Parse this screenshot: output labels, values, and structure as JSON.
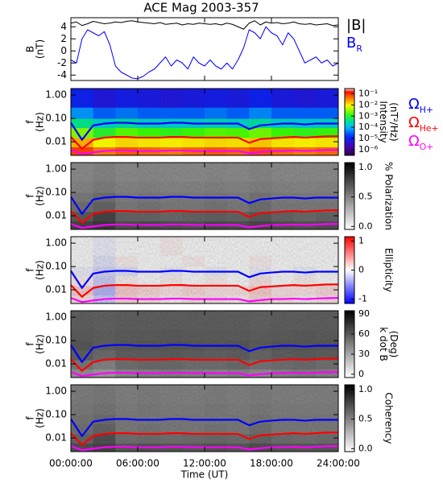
{
  "chart_data": [
    {
      "type": "line",
      "title": "ACE Mag 2003-357",
      "ylabel": [
        "B",
        "(nT)"
      ],
      "xlim": [
        0,
        24
      ],
      "ylim": [
        -4.9,
        5.5
      ],
      "yticks": [
        4,
        2,
        0,
        -2,
        -4
      ],
      "x": [
        0,
        0.5,
        1,
        1.5,
        2,
        2.5,
        3,
        3.5,
        4,
        4.5,
        5,
        5.5,
        6,
        6.5,
        7,
        7.5,
        8,
        8.5,
        9,
        9.5,
        10,
        10.5,
        11,
        11.5,
        12,
        12.5,
        13,
        13.5,
        14,
        14.5,
        15,
        15.5,
        16,
        16.5,
        17,
        17.5,
        18,
        18.5,
        19,
        19.5,
        20,
        20.5,
        21,
        21.5,
        22,
        22.5,
        23,
        23.5,
        24
      ],
      "series": [
        {
          "name": "|B|",
          "color": "#000000",
          "values": [
            4.6,
            4.8,
            4.2,
            4.5,
            4.9,
            4.7,
            4.5,
            4.6,
            4.8,
            4.7,
            4.9,
            5.0,
            4.8,
            4.7,
            4.6,
            4.5,
            4.7,
            4.4,
            4.5,
            4.6,
            4.3,
            4.5,
            4.4,
            4.6,
            4.5,
            4.4,
            4.5,
            4.3,
            4.6,
            4.4,
            4.0,
            3.6,
            4.6,
            5.0,
            4.3,
            4.8,
            4.6,
            4.7,
            4.5,
            4.6,
            4.8,
            4.5,
            4.4,
            4.5,
            4.3,
            4.4,
            4.5,
            4.2,
            4.3
          ]
        },
        {
          "name": "BR",
          "color": "#0000ff",
          "values": [
            -1.5,
            -2,
            2,
            3.5,
            3,
            2.5,
            3.2,
            1,
            -2.5,
            -3.5,
            -4,
            -4.5,
            -4.6,
            -4.2,
            -3.5,
            -3,
            -2,
            -1,
            -2.5,
            -1.5,
            -2,
            -3,
            -1,
            -2,
            -2.5,
            -1.5,
            -2.5,
            -3,
            -2,
            -3,
            -1.5,
            0.5,
            3.5,
            3,
            2,
            4,
            3,
            2.5,
            1,
            3,
            2,
            0,
            -2,
            -1.5,
            -1,
            -2,
            -1.5,
            -2.5,
            -2
          ]
        }
      ]
    },
    {
      "type": "heatmap",
      "ylabel": [
        "f",
        "(Hz)"
      ],
      "ylog": true,
      "xlim": [
        0,
        24
      ],
      "ylim": [
        0.0026,
        1.9
      ],
      "yticks": [
        {
          "value": 1,
          "label": "1.00"
        },
        {
          "value": 0.1,
          "label": "0.10"
        },
        {
          "value": 0.01,
          "label": "0.01"
        }
      ],
      "colormap": "rainbow",
      "zlog": true,
      "zlim": [
        3e-07,
        0.3
      ],
      "zlabel": [
        "Intensity",
        "(nT²/Hz)"
      ],
      "zticks": [
        {
          "value": 0.1,
          "label": "10⁻¹"
        },
        {
          "value": 0.01,
          "label": "10⁻²"
        },
        {
          "value": 0.001,
          "label": "10⁻³"
        },
        {
          "value": 0.0001,
          "label": "10⁻⁴"
        },
        {
          "value": 1e-05,
          "label": "10⁻⁵"
        },
        {
          "value": 1e-06,
          "label": "10⁻⁶"
        }
      ],
      "x_bins": [
        0,
        2,
        4,
        6,
        8,
        10,
        12,
        14,
        16,
        18,
        20,
        22,
        24
      ],
      "y_bins": [
        0.0026,
        0.006,
        0.015,
        0.04,
        0.1,
        0.3,
        1.9
      ],
      "z": [
        [
          0.08,
          0.04,
          0.06,
          0.05,
          0.04,
          0.05,
          0.06,
          0.05,
          0.07,
          0.05,
          0.04,
          0.05
        ],
        [
          0.02,
          0.008,
          0.012,
          0.01,
          0.009,
          0.01,
          0.012,
          0.011,
          0.015,
          0.01,
          0.009,
          0.01
        ],
        [
          0.003,
          0.001,
          0.002,
          0.0015,
          0.0012,
          0.0015,
          0.002,
          0.0018,
          0.0025,
          0.0015,
          0.0012,
          0.0014
        ],
        [
          0.0004,
          0.0002,
          0.0003,
          0.0002,
          0.00018,
          0.0002,
          0.00025,
          0.0002,
          0.0003,
          0.0002,
          0.00018,
          0.0002
        ],
        [
          6e-05,
          3e-05,
          4e-05,
          3e-05,
          3e-05,
          3e-05,
          4e-05,
          3e-05,
          5e-05,
          3e-05,
          3e-05,
          3e-05
        ],
        [
          1e-05,
          6e-06,
          8e-06,
          7e-06,
          6e-06,
          7e-06,
          8e-06,
          7e-06,
          1e-05,
          7e-06,
          6e-06,
          7e-06
        ]
      ],
      "x": [
        0,
        1,
        2,
        3,
        4,
        5,
        6,
        7,
        8,
        9,
        10,
        11,
        12,
        13,
        14,
        15,
        16,
        17,
        18,
        19,
        20,
        21,
        22,
        23,
        24
      ],
      "series": [
        {
          "name": "ΩH+",
          "color": "#0000ff",
          "values": [
            0.065,
            0.012,
            0.05,
            0.06,
            0.065,
            0.065,
            0.06,
            0.06,
            0.06,
            0.065,
            0.065,
            0.06,
            0.06,
            0.06,
            0.06,
            0.06,
            0.035,
            0.05,
            0.055,
            0.06,
            0.06,
            0.055,
            0.06,
            0.06,
            0.06
          ]
        },
        {
          "name": "ΩHe+",
          "color": "#ff0000",
          "values": [
            0.016,
            0.005,
            0.012,
            0.015,
            0.016,
            0.016,
            0.015,
            0.015,
            0.015,
            0.016,
            0.016,
            0.015,
            0.015,
            0.015,
            0.015,
            0.015,
            0.009,
            0.013,
            0.014,
            0.015,
            0.016,
            0.015,
            0.016,
            0.017,
            0.017
          ]
        },
        {
          "name": "ΩO+",
          "color": "#ff00ff",
          "values": [
            0.0045,
            0.003,
            0.0035,
            0.004,
            0.0042,
            0.0042,
            0.004,
            0.004,
            0.004,
            0.0042,
            0.0042,
            0.004,
            0.004,
            0.004,
            0.004,
            0.004,
            0.0032,
            0.0036,
            0.004,
            0.004,
            0.0042,
            0.004,
            0.0042,
            0.0044,
            0.0045
          ]
        }
      ]
    },
    {
      "type": "heatmap",
      "ylabel": [
        "f",
        "(Hz)"
      ],
      "ylog": true,
      "xlim": [
        0,
        24
      ],
      "ylim": [
        0.0026,
        1.9
      ],
      "yticks": [
        {
          "value": 1,
          "label": "1.00"
        },
        {
          "value": 0.1,
          "label": "0.10"
        },
        {
          "value": 0.01,
          "label": "0.01"
        }
      ],
      "colormap": "gray",
      "zlim": [
        -0.05,
        1.08
      ],
      "zlabel": [
        "% Polarization"
      ],
      "zticks": [
        {
          "value": 1,
          "label": "1.0"
        },
        0.5,
        {
          "value": 0,
          "label": "0.0"
        }
      ],
      "x_bins": [
        0,
        2,
        4,
        6,
        8,
        10,
        12,
        14,
        16,
        18,
        20,
        22,
        24
      ],
      "y_bins": [
        0.0026,
        0.006,
        0.015,
        0.04,
        0.1,
        0.3,
        1.9
      ],
      "z": [
        [
          0.75,
          0.8,
          0.7,
          0.72,
          0.7,
          0.68,
          0.72,
          0.7,
          0.74,
          0.7,
          0.68,
          0.7
        ],
        [
          0.65,
          0.75,
          0.6,
          0.6,
          0.58,
          0.6,
          0.62,
          0.6,
          0.65,
          0.6,
          0.58,
          0.6
        ],
        [
          0.55,
          0.6,
          0.5,
          0.52,
          0.5,
          0.5,
          0.52,
          0.5,
          0.55,
          0.5,
          0.5,
          0.5
        ],
        [
          0.5,
          0.55,
          0.48,
          0.5,
          0.48,
          0.48,
          0.5,
          0.48,
          0.52,
          0.48,
          0.48,
          0.48
        ],
        [
          0.45,
          0.48,
          0.45,
          0.46,
          0.44,
          0.45,
          0.46,
          0.45,
          0.47,
          0.45,
          0.44,
          0.45
        ],
        [
          0.42,
          0.45,
          0.42,
          0.43,
          0.42,
          0.42,
          0.43,
          0.42,
          0.44,
          0.42,
          0.42,
          0.42
        ]
      ]
    },
    {
      "type": "heatmap",
      "ylabel": [
        "f",
        "(Hz)"
      ],
      "ylog": true,
      "xlim": [
        0,
        24
      ],
      "ylim": [
        0.0026,
        1.9
      ],
      "yticks": [
        {
          "value": 1,
          "label": "1.00"
        },
        {
          "value": 0.1,
          "label": "0.10"
        },
        {
          "value": 0.01,
          "label": "0.01"
        }
      ],
      "colormap": "bwr",
      "zlim": [
        -1.15,
        1.15
      ],
      "zlabel": [
        "Ellipticity"
      ],
      "zticks": [
        1,
        0,
        -1
      ],
      "x_bins": [
        0,
        2,
        4,
        6,
        8,
        10,
        12,
        14,
        16,
        18,
        20,
        22,
        24
      ],
      "y_bins": [
        0.0026,
        0.006,
        0.015,
        0.04,
        0.1,
        0.3,
        1.9
      ],
      "z": [
        [
          0.1,
          -0.2,
          0.15,
          0.1,
          0.05,
          0.1,
          0.1,
          0.05,
          0.15,
          0.1,
          0.05,
          0.1
        ],
        [
          0.2,
          -0.3,
          0.2,
          0.15,
          0.1,
          0.15,
          0.1,
          0.1,
          0.2,
          0.1,
          0.1,
          0.15
        ],
        [
          0.05,
          -0.2,
          0.05,
          0,
          0.05,
          0,
          0.05,
          0,
          0.1,
          0,
          0.05,
          0
        ],
        [
          -0.05,
          -0.15,
          -0.1,
          0,
          -0.05,
          0,
          -0.05,
          0,
          -0.05,
          0,
          -0.05,
          0
        ],
        [
          0,
          -0.1,
          0.05,
          0,
          0,
          0.05,
          0,
          0,
          0.05,
          0,
          0,
          0
        ],
        [
          0,
          -0.05,
          0,
          0,
          0.05,
          0,
          0,
          0,
          0,
          0,
          0,
          0
        ]
      ]
    },
    {
      "type": "heatmap",
      "ylabel": [
        "f",
        "(Hz)"
      ],
      "ylog": true,
      "xlim": [
        0,
        24
      ],
      "ylim": [
        0.0026,
        1.9
      ],
      "yticks": [
        {
          "value": 1,
          "label": "1.00"
        },
        {
          "value": 0.1,
          "label": "0.10"
        },
        {
          "value": 0.01,
          "label": "0.01"
        }
      ],
      "colormap": "gray",
      "zlim": [
        -5,
        95
      ],
      "zlabel": [
        "k dot B",
        "(Deg)"
      ],
      "zticks": [
        90,
        60,
        30,
        0
      ],
      "x_bins": [
        0,
        2,
        4,
        6,
        8,
        10,
        12,
        14,
        16,
        18,
        20,
        22,
        24
      ],
      "y_bins": [
        0.0026,
        0.006,
        0.015,
        0.04,
        0.1,
        0.3,
        1.9
      ],
      "z": [
        [
          35,
          30,
          38,
          40,
          42,
          40,
          38,
          40,
          36,
          40,
          42,
          40
        ],
        [
          45,
          40,
          48,
          50,
          50,
          48,
          48,
          50,
          46,
          48,
          50,
          48
        ],
        [
          55,
          50,
          55,
          55,
          56,
          55,
          54,
          55,
          52,
          55,
          56,
          55
        ],
        [
          58,
          55,
          57,
          58,
          58,
          58,
          57,
          58,
          56,
          58,
          58,
          58
        ],
        [
          56,
          55,
          56,
          56,
          57,
          56,
          56,
          56,
          55,
          56,
          57,
          56
        ],
        [
          55,
          54,
          55,
          55,
          55,
          55,
          55,
          55,
          54,
          55,
          55,
          55
        ]
      ]
    },
    {
      "type": "heatmap",
      "ylabel": [
        "f",
        "(Hz)"
      ],
      "ylog": true,
      "xlim": [
        0,
        24
      ],
      "ylim": [
        0.0026,
        1.9
      ],
      "yticks": [
        {
          "value": 1,
          "label": "1.00"
        },
        {
          "value": 0.1,
          "label": "0.10"
        },
        {
          "value": 0.01,
          "label": "0.01"
        }
      ],
      "colormap": "gray",
      "zlim": [
        -0.05,
        1.08
      ],
      "zlabel": [
        "Coherency"
      ],
      "zticks": [
        {
          "value": 1,
          "label": "1.0"
        },
        0.5,
        {
          "value": 0,
          "label": "0.0"
        }
      ],
      "x_bins": [
        0,
        2,
        4,
        6,
        8,
        10,
        12,
        14,
        16,
        18,
        20,
        22,
        24
      ],
      "y_bins": [
        0.0026,
        0.006,
        0.015,
        0.04,
        0.1,
        0.3,
        1.9
      ],
      "z": [
        [
          0.7,
          0.75,
          0.65,
          0.68,
          0.66,
          0.65,
          0.68,
          0.66,
          0.7,
          0.66,
          0.65,
          0.66
        ],
        [
          0.6,
          0.7,
          0.55,
          0.56,
          0.55,
          0.56,
          0.58,
          0.56,
          0.6,
          0.56,
          0.55,
          0.56
        ],
        [
          0.55,
          0.6,
          0.5,
          0.52,
          0.5,
          0.5,
          0.52,
          0.5,
          0.55,
          0.5,
          0.5,
          0.5
        ],
        [
          0.52,
          0.56,
          0.5,
          0.5,
          0.5,
          0.5,
          0.5,
          0.5,
          0.52,
          0.5,
          0.5,
          0.5
        ],
        [
          0.5,
          0.52,
          0.48,
          0.5,
          0.48,
          0.48,
          0.5,
          0.48,
          0.5,
          0.48,
          0.48,
          0.48
        ],
        [
          0.48,
          0.5,
          0.47,
          0.48,
          0.47,
          0.47,
          0.48,
          0.47,
          0.48,
          0.47,
          0.47,
          0.47
        ]
      ],
      "xlabel": "Time (UT)",
      "xticks": [
        {
          "value": 0,
          "label": "00:00:00"
        },
        {
          "value": 6,
          "label": "06:00:00"
        },
        {
          "value": 12,
          "label": "12:00:00"
        },
        {
          "value": 18,
          "label": "18:00:00"
        },
        {
          "value": 24,
          "label": "24:00:00"
        }
      ]
    }
  ]
}
